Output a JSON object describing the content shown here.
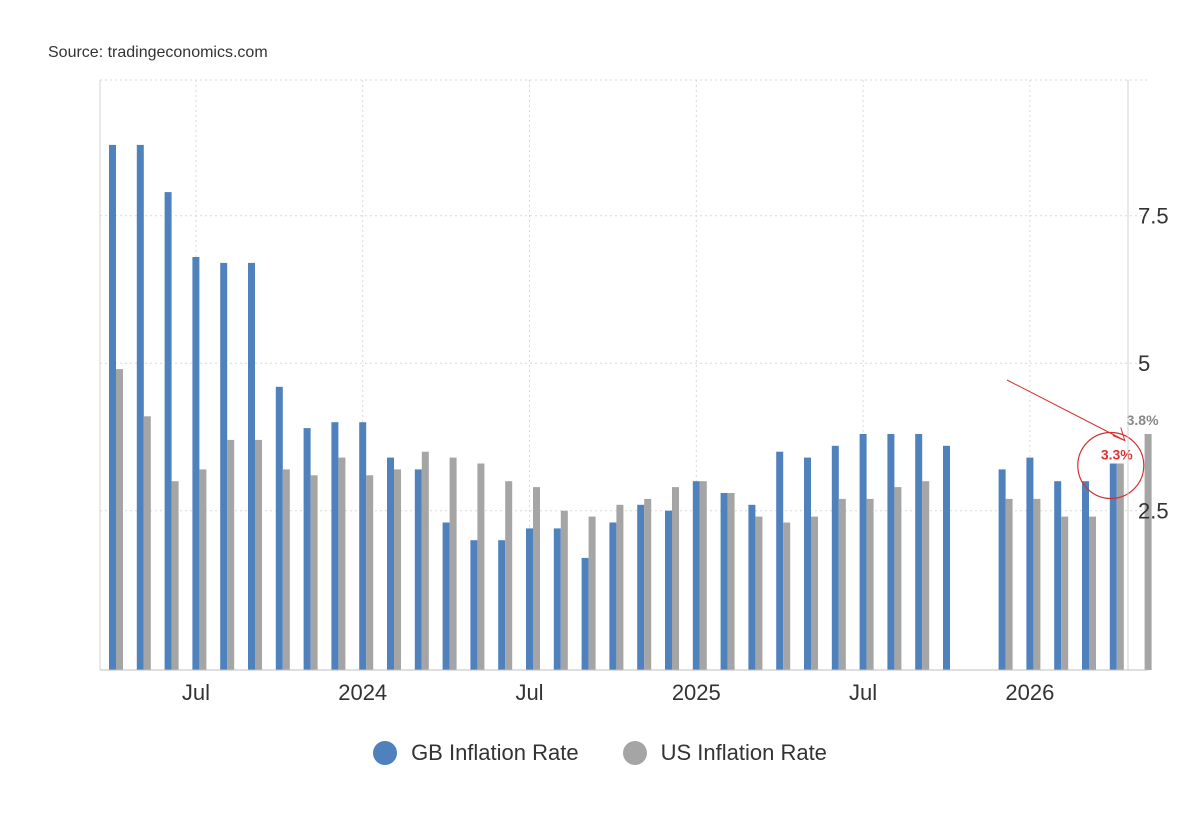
{
  "source_text": "Source: tradingeconomics.com",
  "chart_data": {
    "type": "bar",
    "x_tick_labels": [
      "Jul",
      "2024",
      "Jul",
      "2025",
      "Jul",
      "2026"
    ],
    "y_ticks": [
      2.5,
      5,
      7.5
    ],
    "y_tick_labels": [
      "2.5",
      "5",
      "7.5"
    ],
    "ylim": [
      -0.2,
      9.8
    ],
    "grid": true,
    "legend_position": "bottom",
    "series": [
      {
        "name": "GB Inflation Rate",
        "color": "#4f81bd",
        "values": [
          8.7,
          8.7,
          7.9,
          6.8,
          6.7,
          6.7,
          4.6,
          3.9,
          4.0,
          4.0,
          3.4,
          3.2,
          2.3,
          2.0,
          2.0,
          2.2,
          2.2,
          1.7,
          2.3,
          2.6,
          2.5,
          3.0,
          2.8,
          2.6,
          3.5,
          3.4,
          3.6,
          3.8,
          3.8,
          3.8,
          3.6,
          0,
          3.2,
          3.4,
          3.0,
          3.0,
          3.3,
          null
        ]
      },
      {
        "name": "US Inflation Rate",
        "color": "#a5a5a5",
        "values": [
          4.9,
          4.1,
          3.0,
          3.2,
          3.7,
          3.7,
          3.2,
          3.1,
          3.4,
          3.1,
          3.2,
          3.5,
          3.4,
          3.3,
          3.0,
          2.9,
          2.5,
          2.4,
          2.6,
          2.7,
          2.9,
          3.0,
          2.8,
          2.4,
          2.3,
          2.4,
          2.7,
          2.7,
          2.9,
          3.0,
          null,
          null,
          2.7,
          2.7,
          2.4,
          2.4,
          3.3,
          3.8
        ]
      }
    ],
    "annotations": [
      {
        "text": "3.3%",
        "color": "#e03030",
        "series": "GB Inflation Rate",
        "value": 3.3
      },
      {
        "text": "3.8%",
        "color": "#888888",
        "series": "US Inflation Rate",
        "value": 3.8
      }
    ]
  },
  "legend": {
    "items": [
      {
        "label": "GB Inflation Rate",
        "color": "#4f81bd"
      },
      {
        "label": "US Inflation Rate",
        "color": "#a5a5a5"
      }
    ]
  }
}
